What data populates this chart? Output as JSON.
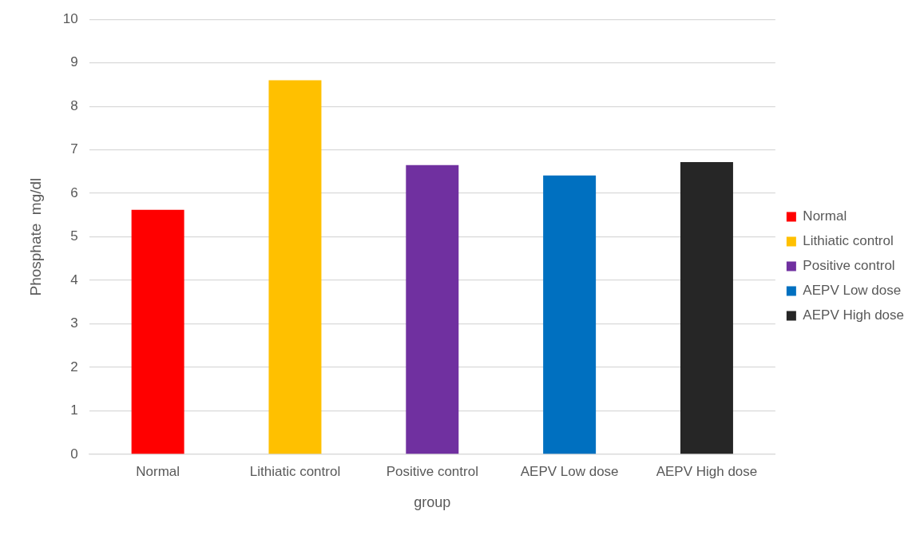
{
  "chart_data": {
    "type": "bar",
    "xlabel": "group",
    "ylabel": "Phosphate  mg/dl",
    "categories": [
      "Normal",
      "Lithiatic control",
      "Positive control",
      "AEPV Low dose",
      "AEPV High dose"
    ],
    "series": [
      {
        "name": "Normal",
        "color": "#ff0000",
        "values": [
          5.62,
          null,
          null,
          null,
          null
        ]
      },
      {
        "name": "Lithiatic control",
        "color": "#ffc000",
        "values": [
          null,
          8.6,
          null,
          null,
          null
        ]
      },
      {
        "name": "Positive control",
        "color": "#7030a0",
        "values": [
          null,
          null,
          6.65,
          null,
          null
        ]
      },
      {
        "name": "AEPV Low dose",
        "color": "#0070c0",
        "values": [
          null,
          null,
          null,
          6.41,
          null
        ]
      },
      {
        "name": "AEPV High dose",
        "color": "#262626",
        "values": [
          null,
          null,
          null,
          null,
          6.72
        ]
      }
    ],
    "ylim": [
      0,
      10
    ],
    "yticks": [
      0,
      1,
      2,
      3,
      4,
      5,
      6,
      7,
      8,
      9,
      10
    ],
    "grid": "y",
    "legend": "right"
  }
}
